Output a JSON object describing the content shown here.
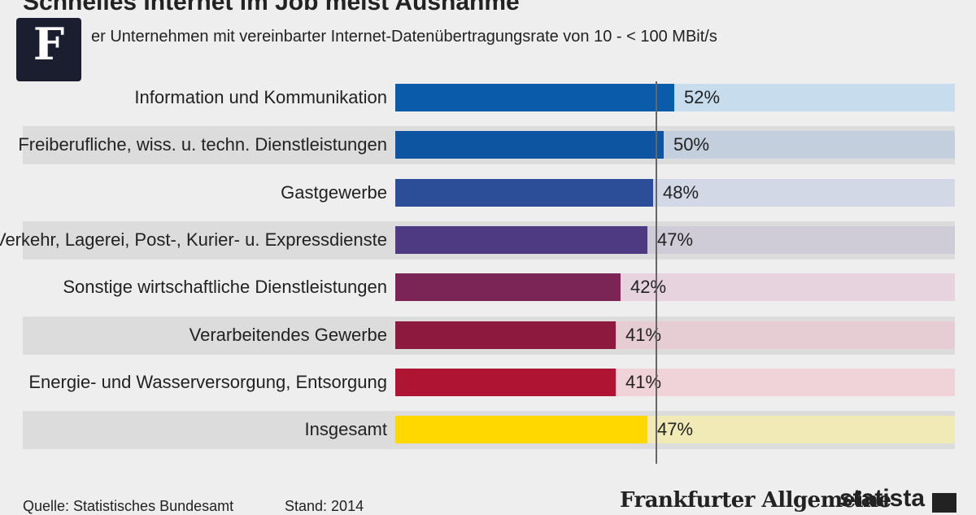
{
  "header": {
    "title": "Schnelles Internet im Job meist Ausnahme",
    "subtitle": "er Unternehmen mit vereinbarter Internet-Datenübertragungsrate von 10 - < 100 MBit/s"
  },
  "logo": {
    "letter": "F",
    "icon": "faz-logo-icon"
  },
  "chart_data": {
    "type": "bar",
    "orientation": "horizontal",
    "categories": [
      "Information und Kommunikation",
      "Freiberufliche, wiss. u. techn. Dienstleistungen",
      "Gastgewerbe",
      "Verkehr, Lagerei, Post-, Kurier- u. Expressdienste",
      "Sonstige wirtschaftliche Dienstleistungen",
      "Verarbeitendes Gewerbe",
      "Energie- und Wasserversorgung, Entsorgung",
      "Insgesamt"
    ],
    "values": [
      52,
      50,
      48,
      47,
      42,
      41,
      41,
      47
    ],
    "value_labels": [
      "52%",
      "50%",
      "48%",
      "47%",
      "42%",
      "41%",
      "41%",
      "47%"
    ],
    "unit": "%",
    "xlim": [
      0,
      100
    ],
    "reference_value": 47,
    "bar_colors": [
      "#0a5cab",
      "#0d55a0",
      "#2c4d97",
      "#4e3a82",
      "#7a2556",
      "#8d1a3e",
      "#b01433",
      "#ffd800"
    ],
    "track_colors": [
      "#c7dcec",
      "#c3cfdd",
      "#d3d8e6",
      "#cfcbd7",
      "#e6d3dd",
      "#e6cdd3",
      "#efd3d8",
      "#f2eab6"
    ],
    "grid": false,
    "legend": "none"
  },
  "footer": {
    "source": "Quelle: Statistisches Bundesamt",
    "stand": "Stand: 2014",
    "faz_brand": "Frankfurter Allgemeine",
    "statista_brand": "statista",
    "statista_icon": "statista-logo-icon"
  }
}
